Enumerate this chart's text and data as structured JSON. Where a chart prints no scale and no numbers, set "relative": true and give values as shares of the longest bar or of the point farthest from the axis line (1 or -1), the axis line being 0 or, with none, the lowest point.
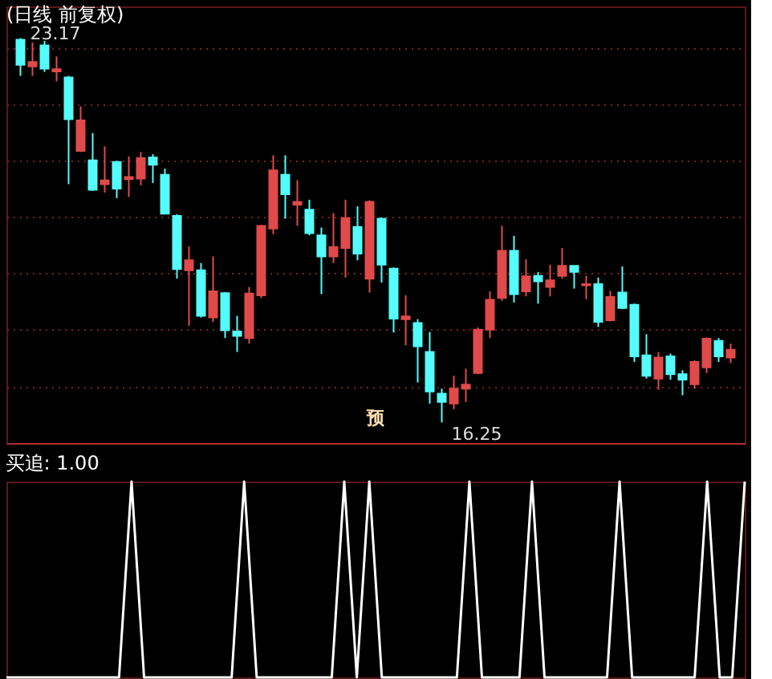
{
  "chart_data": [
    {
      "type": "candlestick",
      "title": "(日线 前复权)",
      "categories": [
        null,
        null,
        null,
        null,
        null,
        null,
        null,
        null,
        null,
        null,
        null,
        null,
        null,
        null,
        null,
        null,
        null,
        null,
        null,
        null,
        null,
        null,
        null,
        null,
        null,
        null,
        null,
        null,
        null,
        null,
        null,
        null,
        null,
        null,
        null,
        null,
        null,
        null,
        null,
        null,
        null,
        null,
        null,
        null,
        null,
        null,
        null,
        null,
        null,
        null,
        null,
        null,
        null,
        null,
        null,
        null,
        null,
        null,
        null,
        null
      ],
      "ohlc": [
        [
          23.14,
          23.17,
          22.49,
          22.69
        ],
        [
          22.66,
          23.09,
          22.49,
          22.74
        ],
        [
          23.04,
          23.12,
          22.56,
          22.62
        ],
        [
          22.57,
          22.84,
          22.39,
          22.61
        ],
        [
          22.46,
          22.49,
          20.54,
          21.71
        ],
        [
          21.14,
          21.94,
          21.12,
          21.69
        ],
        [
          20.97,
          21.46,
          20.42,
          20.44
        ],
        [
          20.54,
          21.22,
          20.39,
          20.61
        ],
        [
          20.94,
          20.96,
          20.29,
          20.46
        ],
        [
          20.63,
          21.04,
          20.31,
          20.67
        ],
        [
          20.64,
          21.12,
          20.52,
          21.01
        ],
        [
          21.02,
          21.08,
          20.56,
          20.89
        ],
        [
          20.71,
          20.82,
          20.01,
          20.01
        ],
        [
          19.97,
          20.0,
          18.84,
          19.01
        ],
        [
          18.99,
          19.42,
          17.99,
          19.17
        ],
        [
          18.99,
          19.12,
          18.14,
          18.17
        ],
        [
          18.14,
          19.24,
          18.06,
          18.61
        ],
        [
          18.58,
          18.6,
          17.77,
          17.91
        ],
        [
          17.89,
          18.17,
          17.52,
          17.81
        ],
        [
          17.77,
          18.69,
          17.67,
          18.57
        ],
        [
          18.54,
          19.81,
          18.49,
          19.79
        ],
        [
          19.74,
          21.06,
          19.64,
          20.79
        ],
        [
          20.71,
          21.06,
          19.92,
          20.36
        ],
        [
          20.17,
          20.61,
          19.79,
          20.22
        ],
        [
          20.08,
          20.26,
          19.62,
          19.66
        ],
        [
          19.62,
          19.76,
          18.56,
          19.24
        ],
        [
          19.24,
          20.02,
          19.12,
          19.41
        ],
        [
          19.39,
          20.26,
          18.86,
          19.93
        ],
        [
          19.77,
          20.14,
          19.17,
          19.29
        ],
        [
          18.84,
          20.25,
          18.59,
          20.22
        ],
        [
          19.92,
          19.94,
          18.77,
          19.09
        ],
        [
          19.02,
          19.04,
          17.87,
          18.12
        ],
        [
          18.11,
          18.54,
          17.64,
          18.16
        ],
        [
          18.04,
          18.11,
          16.97,
          17.62
        ],
        [
          17.52,
          17.88,
          16.59,
          16.81
        ],
        [
          16.77,
          16.86,
          16.25,
          16.62
        ],
        [
          16.59,
          17.09,
          16.49,
          16.86
        ],
        [
          16.86,
          17.22,
          16.62,
          16.93
        ],
        [
          17.14,
          17.96,
          17.12,
          17.92
        ],
        [
          17.92,
          18.61,
          17.77,
          18.46
        ],
        [
          18.49,
          19.79,
          18.44,
          19.34
        ],
        [
          19.34,
          19.61,
          18.41,
          18.56
        ],
        [
          18.61,
          19.19,
          18.52,
          18.88
        ],
        [
          18.89,
          18.96,
          18.39,
          18.79
        ],
        [
          18.69,
          19.09,
          18.52,
          18.81
        ],
        [
          18.89,
          19.39,
          18.84,
          19.07
        ],
        [
          19.07,
          19.07,
          18.66,
          18.96
        ],
        [
          18.72,
          18.89,
          18.47,
          18.74
        ],
        [
          18.74,
          18.86,
          17.97,
          18.06
        ],
        [
          18.09,
          18.62,
          18.07,
          18.51
        ],
        [
          18.59,
          19.06,
          18.29,
          18.31
        ],
        [
          18.37,
          18.39,
          17.34,
          17.44
        ],
        [
          17.46,
          17.84,
          17.04,
          17.09
        ],
        [
          17.04,
          17.52,
          16.84,
          17.42
        ],
        [
          17.44,
          17.49,
          17.02,
          17.12
        ],
        [
          17.12,
          17.19,
          16.74,
          17.02
        ],
        [
          16.94,
          17.37,
          16.86,
          17.34
        ],
        [
          17.24,
          17.78,
          17.14,
          17.76
        ],
        [
          17.72,
          17.77,
          17.34,
          17.44
        ],
        [
          17.42,
          17.67,
          17.32,
          17.56
        ]
      ],
      "colors": [
        "#54fcfc",
        "#e04a4a",
        "#54fcfc",
        "#e04a4a",
        "#54fcfc",
        "#e04a4a",
        "#54fcfc",
        "#e04a4a",
        "#54fcfc",
        "#e04a4a",
        "#e04a4a",
        "#54fcfc",
        "#54fcfc",
        "#54fcfc",
        "#e04a4a",
        "#54fcfc",
        "#e04a4a",
        "#54fcfc",
        "#54fcfc",
        "#e04a4a",
        "#e04a4a",
        "#e04a4a",
        "#54fcfc",
        "#e04a4a",
        "#54fcfc",
        "#54fcfc",
        "#e04a4a",
        "#e04a4a",
        "#54fcfc",
        "#e04a4a",
        "#54fcfc",
        "#54fcfc",
        "#e04a4a",
        "#54fcfc",
        "#54fcfc",
        "#54fcfc",
        "#e04a4a",
        "#e04a4a",
        "#e04a4a",
        "#e04a4a",
        "#e04a4a",
        "#54fcfc",
        "#e04a4a",
        "#54fcfc",
        "#e04a4a",
        "#e04a4a",
        "#54fcfc",
        "#e04a4a",
        "#54fcfc",
        "#e04a4a",
        "#54fcfc",
        "#54fcfc",
        "#54fcfc",
        "#e04a4a",
        "#54fcfc",
        "#54fcfc",
        "#e04a4a",
        "#e04a4a",
        "#54fcfc",
        "#e04a4a"
      ],
      "ylim": [
        15.88,
        23.74
      ],
      "yticks": [
        {
          "value": 22.99,
          "label": null
        },
        {
          "value": 21.99,
          "label": null
        },
        {
          "value": 20.98,
          "label": null
        },
        {
          "value": 19.96,
          "label": null
        },
        {
          "value": 18.94,
          "label": null
        },
        {
          "value": 17.94,
          "label": null
        },
        {
          "value": 16.89,
          "label": null
        }
      ],
      "grid": "y",
      "annotations": [
        "23.17",
        "16.25",
        "预"
      ]
    },
    {
      "type": "line",
      "relative": true,
      "title": "买追: 1.00",
      "categories": [
        null,
        null,
        null,
        null,
        null,
        null,
        null,
        null,
        null,
        null,
        null,
        null,
        null,
        null,
        null,
        null,
        null,
        null,
        null,
        null,
        null,
        null,
        null,
        null,
        null,
        null,
        null,
        null,
        null,
        null,
        null,
        null,
        null,
        null,
        null,
        null,
        null,
        null,
        null,
        null,
        null,
        null,
        null,
        null,
        null,
        null,
        null,
        null,
        null,
        null,
        null,
        null,
        null,
        null,
        null,
        null,
        null,
        null,
        null,
        null
      ],
      "series": [
        {
          "color": "#ffffff",
          "values": [
            0,
            0,
            0,
            0,
            0,
            0,
            0,
            0,
            0,
            0,
            1,
            0,
            0,
            0,
            0,
            0,
            0,
            0,
            0,
            1,
            0,
            0,
            0,
            0,
            0,
            0,
            0,
            1,
            0,
            1,
            0,
            0,
            0,
            0,
            0,
            0,
            0,
            1,
            0,
            0,
            0,
            0,
            1,
            0,
            0,
            0,
            0,
            0,
            0,
            1,
            0,
            0,
            0,
            0,
            0,
            0,
            1,
            0,
            0,
            1
          ]
        }
      ]
    }
  ]
}
